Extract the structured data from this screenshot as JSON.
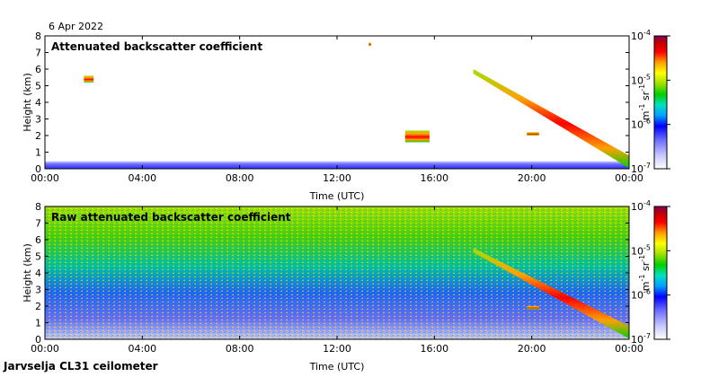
{
  "date_label": "6 Apr 2022",
  "station_label": "Jarvselja CL31 ceilometer",
  "colorbar": {
    "ticks": [
      "10",
      "10",
      "10",
      "10"
    ],
    "exponents": [
      "-4",
      "-5",
      "-6",
      "-7"
    ],
    "unit_parts": [
      "m",
      "-1",
      " sr",
      "-1"
    ],
    "scale": "log",
    "range": [
      1e-07,
      0.0001
    ],
    "colors": [
      "#ffffff",
      "#c8c8ff",
      "#6a6aff",
      "#0000ff",
      "#00a0ff",
      "#00e0c0",
      "#00d000",
      "#a0e000",
      "#ffff00",
      "#ffa000",
      "#ff0000",
      "#c00000",
      "#800060"
    ]
  },
  "chart_data": [
    {
      "type": "heatmap",
      "title": "Attenuated backscatter coefficient",
      "xlabel": "Time (UTC)",
      "ylabel": "Height (km)",
      "x_ticks": [
        "00:00",
        "04:00",
        "08:00",
        "12:00",
        "16:00",
        "20:00",
        "00:00"
      ],
      "y_ticks": [
        "0",
        "1",
        "2",
        "3",
        "4",
        "5",
        "6",
        "7",
        "8"
      ],
      "xlim": [
        0,
        24
      ],
      "ylim": [
        0,
        8
      ],
      "features": [
        {
          "kind": "boundary_layer",
          "hours": [
            0,
            24
          ],
          "height_km": [
            0,
            0.45
          ]
        },
        {
          "kind": "cloud",
          "hours": [
            1.6,
            2.0
          ],
          "height_km": [
            5.2,
            5.6
          ]
        },
        {
          "kind": "cloud",
          "hours": [
            13.3,
            13.4
          ],
          "height_km": [
            7.4,
            7.6
          ]
        },
        {
          "kind": "cloud",
          "hours": [
            14.8,
            15.8
          ],
          "height_km": [
            1.6,
            2.3
          ]
        },
        {
          "kind": "descending_layer",
          "hours": [
            17.6,
            24
          ],
          "height_km_start": 6.0,
          "height_km_end": 0.8
        },
        {
          "kind": "cloud",
          "hours": [
            19.8,
            20.3
          ],
          "height_km": [
            2.0,
            2.2
          ]
        }
      ]
    },
    {
      "type": "heatmap",
      "title": "Raw attenuated backscatter coefficient",
      "xlabel": "Time (UTC)",
      "ylabel": "Height (km)",
      "x_ticks": [
        "00:00",
        "04:00",
        "08:00",
        "12:00",
        "16:00",
        "20:00",
        "00:00"
      ],
      "y_ticks": [
        "0",
        "1",
        "2",
        "3",
        "4",
        "5",
        "6",
        "7",
        "8"
      ],
      "xlim": [
        0,
        24
      ],
      "ylim": [
        0,
        8
      ],
      "features": [
        {
          "kind": "noise_field",
          "hours": [
            0,
            24
          ],
          "height_km": [
            0,
            8
          ]
        },
        {
          "kind": "descending_layer",
          "hours": [
            17.6,
            24
          ],
          "height_km_start": 5.5,
          "height_km_end": 0.8
        },
        {
          "kind": "cloud",
          "hours": [
            19.8,
            20.3
          ],
          "height_km": [
            1.8,
            2.0
          ]
        }
      ]
    }
  ]
}
